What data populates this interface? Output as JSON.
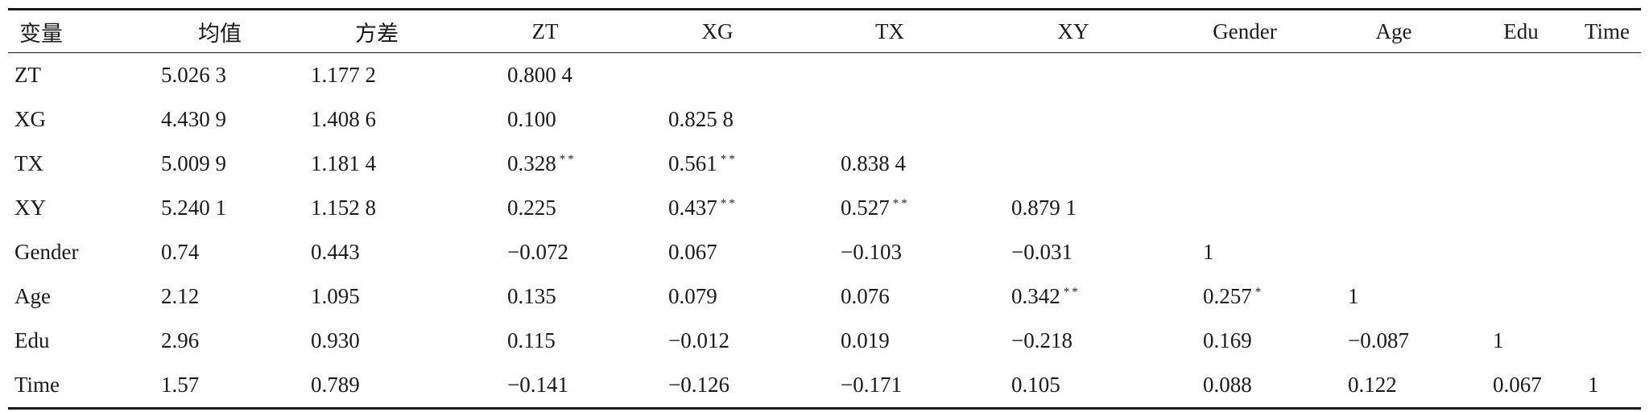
{
  "table": {
    "headers": [
      "变量",
      "均值",
      "方差",
      "ZT",
      "XG",
      "TX",
      "XY",
      "Gender",
      "Age",
      "Edu",
      "Time"
    ],
    "rows": [
      {
        "label": "ZT",
        "cells": [
          {
            "v": "5.026 3"
          },
          {
            "v": "1.177 2"
          },
          {
            "v": "0.800 4"
          }
        ]
      },
      {
        "label": "XG",
        "cells": [
          {
            "v": "4.430 9"
          },
          {
            "v": "1.408 6"
          },
          {
            "v": "0.100"
          },
          {
            "v": "0.825 8"
          }
        ]
      },
      {
        "label": "TX",
        "cells": [
          {
            "v": "5.009 9"
          },
          {
            "v": "1.181 4"
          },
          {
            "v": "0.328",
            "sig": "**"
          },
          {
            "v": "0.561",
            "sig": "**"
          },
          {
            "v": "0.838 4"
          }
        ]
      },
      {
        "label": "XY",
        "cells": [
          {
            "v": "5.240 1"
          },
          {
            "v": "1.152 8"
          },
          {
            "v": "0.225"
          },
          {
            "v": "0.437",
            "sig": "**"
          },
          {
            "v": "0.527",
            "sig": "**"
          },
          {
            "v": "0.879 1"
          }
        ]
      },
      {
        "label": "Gender",
        "cells": [
          {
            "v": "0.74"
          },
          {
            "v": "0.443"
          },
          {
            "v": "−0.072"
          },
          {
            "v": "0.067"
          },
          {
            "v": "−0.103"
          },
          {
            "v": "−0.031"
          },
          {
            "v": "1"
          }
        ]
      },
      {
        "label": "Age",
        "cells": [
          {
            "v": "2.12"
          },
          {
            "v": "1.095"
          },
          {
            "v": "0.135"
          },
          {
            "v": "0.079"
          },
          {
            "v": "0.076"
          },
          {
            "v": "0.342",
            "sig": "**"
          },
          {
            "v": "0.257",
            "sig": "*"
          },
          {
            "v": "1"
          }
        ]
      },
      {
        "label": "Edu",
        "cells": [
          {
            "v": "2.96"
          },
          {
            "v": "0.930"
          },
          {
            "v": "0.115"
          },
          {
            "v": "−0.012"
          },
          {
            "v": "0.019"
          },
          {
            "v": "−0.218"
          },
          {
            "v": "0.169"
          },
          {
            "v": "−0.087"
          },
          {
            "v": "1"
          }
        ]
      },
      {
        "label": "Time",
        "cells": [
          {
            "v": "1.57"
          },
          {
            "v": "0.789"
          },
          {
            "v": "−0.141"
          },
          {
            "v": "−0.126"
          },
          {
            "v": "−0.171"
          },
          {
            "v": "0.105"
          },
          {
            "v": "0.088"
          },
          {
            "v": "0.122"
          },
          {
            "v": "0.067"
          },
          {
            "v": "1"
          }
        ]
      }
    ]
  }
}
